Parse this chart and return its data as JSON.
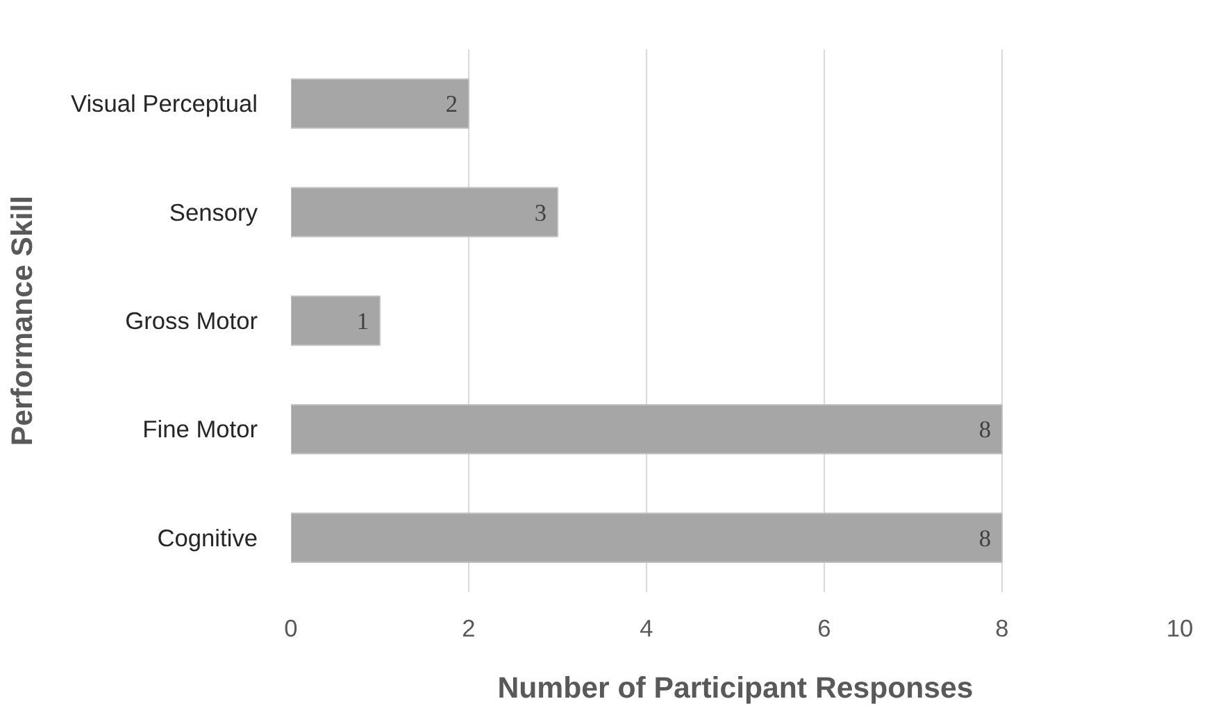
{
  "chart_data": {
    "type": "bar",
    "orientation": "horizontal",
    "xlabel": "Number of Participant Responses",
    "ylabel": "Performance Skill",
    "categories": [
      "Visual Perceptual",
      "Sensory",
      "Gross Motor",
      "Fine Motor",
      "Cognitive"
    ],
    "values": [
      2,
      3,
      1,
      8,
      8
    ],
    "color": "#a6a6a6",
    "xlim": [
      0,
      10
    ],
    "xticks": [
      0,
      2,
      4,
      6,
      8,
      10
    ],
    "grid": "x",
    "data_labels": true
  }
}
